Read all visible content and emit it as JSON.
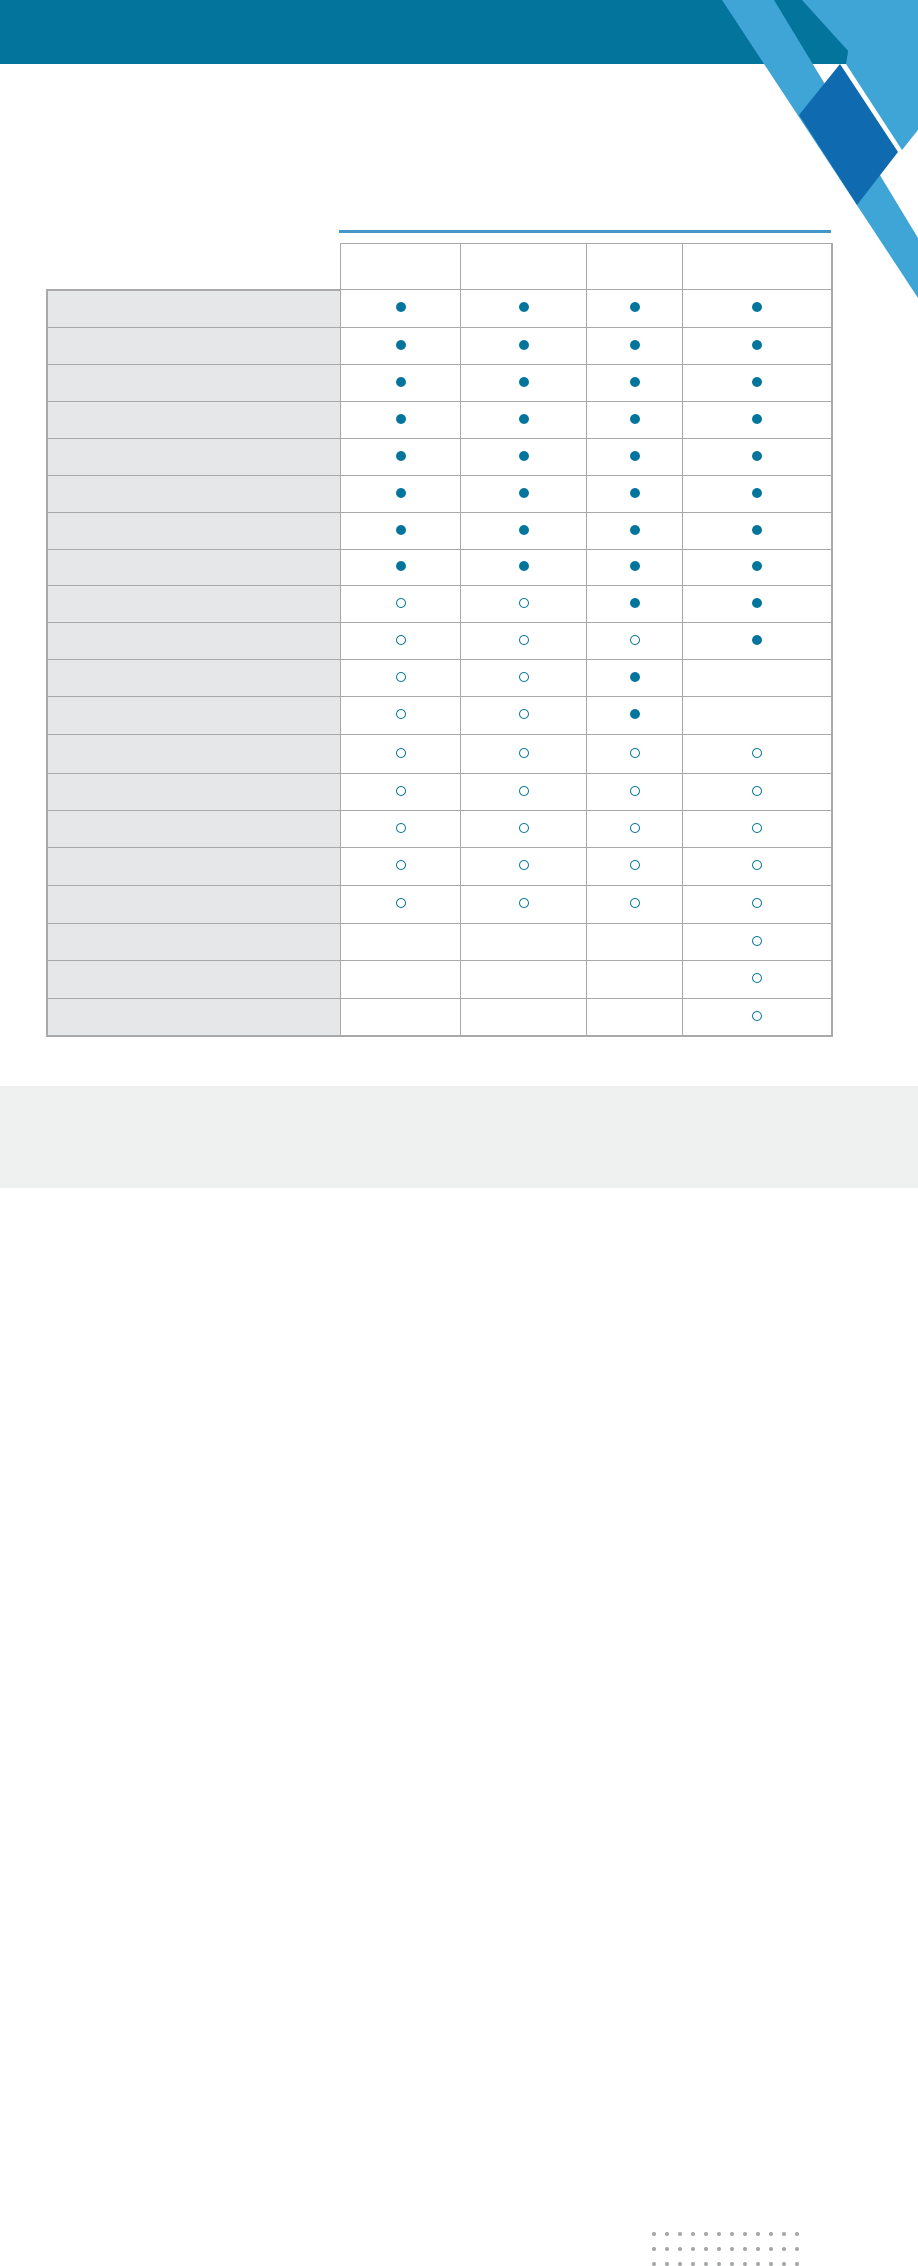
{
  "colors": {
    "banner": "#03759d",
    "accent_light": "#3fa5d6",
    "accent_dark": "#0f6ab0",
    "marker": "#03759d",
    "row_label_bg": "#e6e7e8",
    "footer_bg": "#eff0f0"
  },
  "legend_markers": {
    "full": "filled-circle",
    "empty": "open-circle",
    "none": "blank"
  },
  "table": {
    "columns": 4,
    "rows": [
      {
        "marks": [
          "full",
          "full",
          "full",
          "full"
        ]
      },
      {
        "marks": [
          "full",
          "full",
          "full",
          "full"
        ]
      },
      {
        "marks": [
          "full",
          "full",
          "full",
          "full"
        ]
      },
      {
        "marks": [
          "full",
          "full",
          "full",
          "full"
        ]
      },
      {
        "marks": [
          "full",
          "full",
          "full",
          "full"
        ]
      },
      {
        "marks": [
          "full",
          "full",
          "full",
          "full"
        ]
      },
      {
        "marks": [
          "full",
          "full",
          "full",
          "full"
        ]
      },
      {
        "marks": [
          "full",
          "full",
          "full",
          "full"
        ]
      },
      {
        "marks": [
          "empty",
          "empty",
          "full",
          "full"
        ]
      },
      {
        "marks": [
          "empty",
          "empty",
          "empty",
          "full"
        ]
      },
      {
        "marks": [
          "empty",
          "empty",
          "full",
          "none"
        ]
      },
      {
        "marks": [
          "empty",
          "empty",
          "full",
          "none"
        ]
      },
      {
        "marks": [
          "empty",
          "empty",
          "empty",
          "empty"
        ]
      },
      {
        "marks": [
          "empty",
          "empty",
          "empty",
          "empty"
        ]
      },
      {
        "marks": [
          "empty",
          "empty",
          "empty",
          "empty"
        ]
      },
      {
        "marks": [
          "empty",
          "empty",
          "empty",
          "empty"
        ]
      },
      {
        "marks": [
          "empty",
          "empty",
          "empty",
          "empty"
        ]
      },
      {
        "marks": [
          "none",
          "none",
          "none",
          "empty"
        ]
      },
      {
        "marks": [
          "none",
          "none",
          "none",
          "empty"
        ]
      },
      {
        "marks": [
          "none",
          "none",
          "none",
          "empty"
        ]
      }
    ]
  }
}
